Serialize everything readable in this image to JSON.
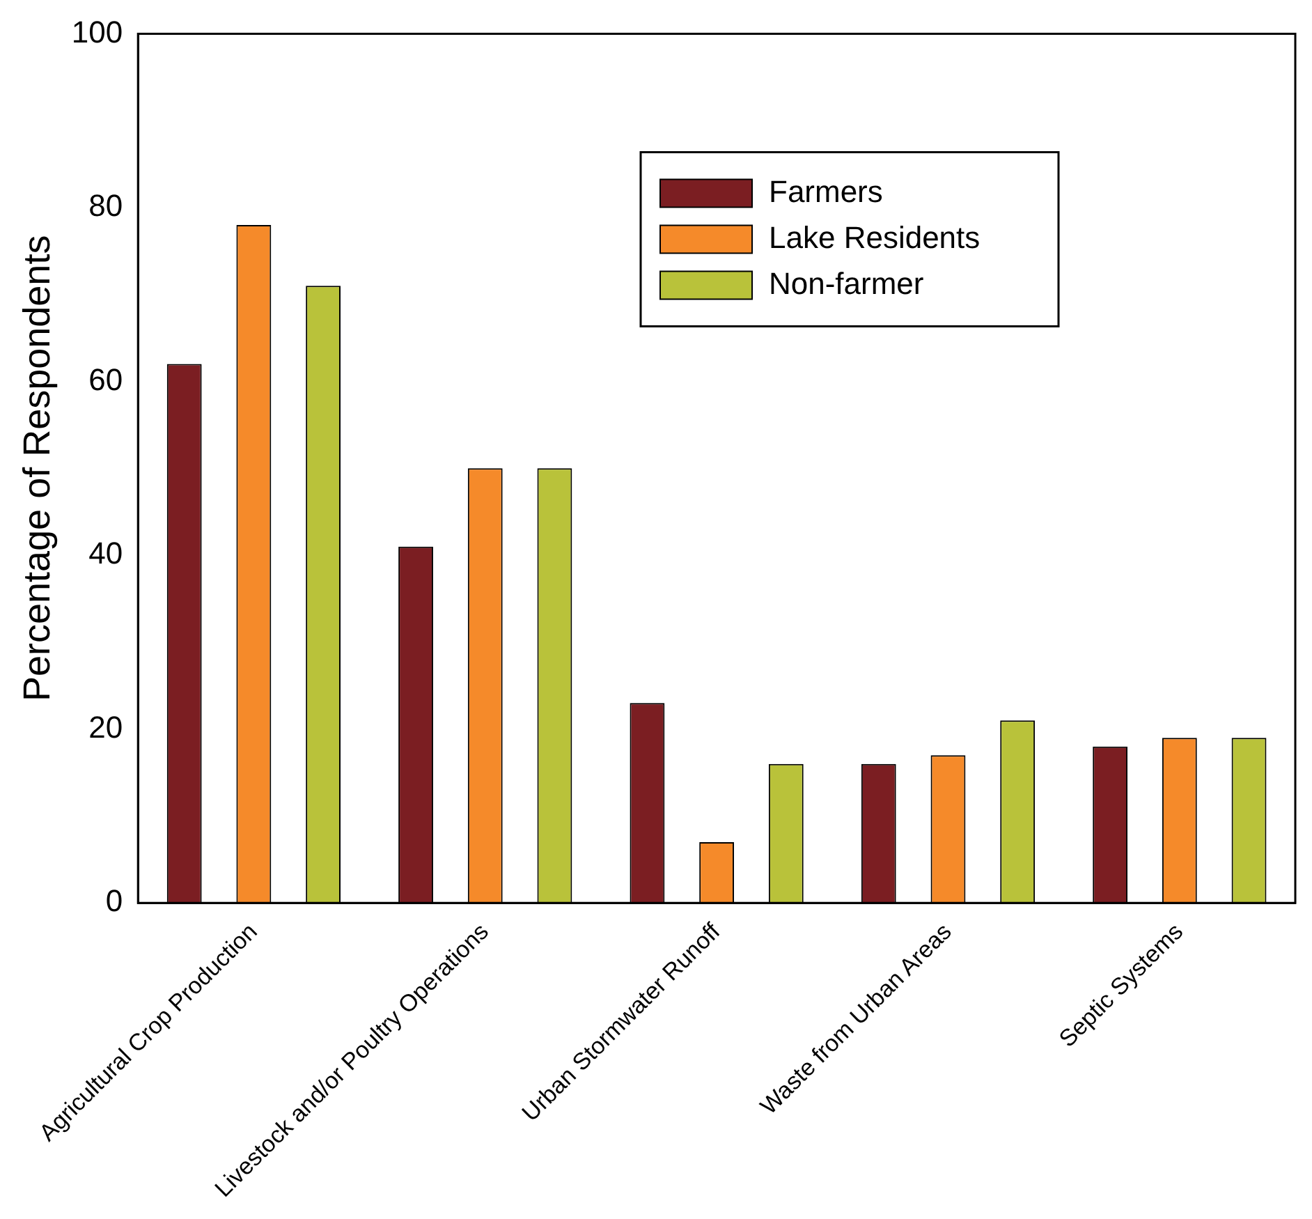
{
  "chart_data": {
    "type": "bar",
    "ylabel": "Percentage of Respondents",
    "categories": [
      "Agricultural Crop Production",
      "Livestock and/or Poultry Operations",
      "Urban Stormwater Runoff",
      "Waste from Urban Areas",
      "Septic Systems"
    ],
    "series": [
      {
        "name": "Farmers",
        "color": "#7b1e22",
        "values": [
          62,
          41,
          23,
          16,
          18
        ]
      },
      {
        "name": "Lake Residents",
        "color": "#f58a2a",
        "values": [
          78,
          50,
          7,
          17,
          19
        ]
      },
      {
        "name": "Non-farmer",
        "color": "#b9c23a",
        "values": [
          71,
          50,
          16,
          21,
          19
        ]
      }
    ],
    "ylim": [
      0,
      100
    ],
    "yticks": [
      0,
      20,
      40,
      60,
      80,
      100
    ],
    "grid": false,
    "legend": "top right"
  }
}
